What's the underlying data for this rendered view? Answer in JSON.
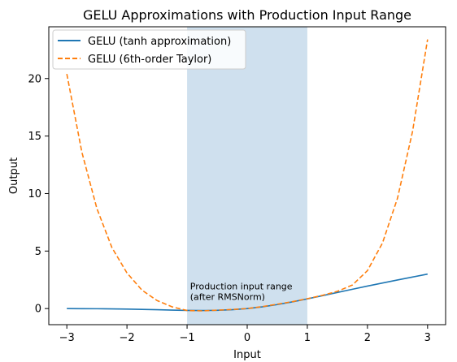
{
  "chart_data": {
    "type": "line",
    "title": "GELU Approximations with Production Input Range",
    "xlabel": "Input",
    "ylabel": "Output",
    "xlim": [
      -3.3,
      3.3
    ],
    "ylim": [
      -1.4,
      24.5
    ],
    "xticks": [
      -3,
      -2,
      -1,
      0,
      1,
      2,
      3
    ],
    "yticks": [
      0,
      5,
      10,
      15,
      20
    ],
    "grid": false,
    "legend_position": "top-left",
    "shaded_region": {
      "x": [
        -1,
        1
      ],
      "color": "#cfe0ee"
    },
    "annotation": {
      "lines": [
        "Production input range",
        "(after RMSNorm)"
      ],
      "x": -0.95,
      "y": 0.6
    },
    "series": [
      {
        "name": "GELU (tanh approximation)",
        "color": "#1f77b4",
        "style": "solid",
        "x": [
          -3.0,
          -2.75,
          -2.5,
          -2.25,
          -2.0,
          -1.75,
          -1.5,
          -1.25,
          -1.0,
          -0.75,
          -0.5,
          -0.25,
          0.0,
          0.25,
          0.5,
          0.75,
          1.0,
          1.25,
          1.5,
          1.75,
          2.0,
          2.25,
          2.5,
          2.75,
          3.0
        ],
        "y": [
          -0.004,
          -0.008,
          -0.015,
          -0.027,
          -0.045,
          -0.07,
          -0.1,
          -0.132,
          -0.159,
          -0.17,
          -0.154,
          -0.1,
          0.0,
          0.15,
          0.346,
          0.58,
          0.841,
          1.118,
          1.4,
          1.68,
          1.955,
          2.223,
          2.485,
          2.742,
          2.996
        ]
      },
      {
        "name": "GELU (6th-order Taylor)",
        "color": "#ff7f0e",
        "style": "dashed",
        "x": [
          -3.0,
          -2.75,
          -2.5,
          -2.25,
          -2.0,
          -1.75,
          -1.5,
          -1.25,
          -1.0,
          -0.75,
          -0.5,
          -0.25,
          0.0,
          0.25,
          0.5,
          0.75,
          1.0,
          1.25,
          1.5,
          1.75,
          2.0,
          2.25,
          2.5,
          2.75,
          3.0
        ],
        "y": [
          20.4,
          13.6,
          8.7,
          5.3,
          3.1,
          1.6,
          0.7,
          0.15,
          -0.17,
          -0.2,
          -0.14,
          -0.08,
          0.0,
          0.17,
          0.38,
          0.6,
          0.86,
          1.15,
          1.5,
          2.05,
          3.3,
          5.7,
          9.6,
          15.4,
          23.4
        ]
      }
    ]
  }
}
